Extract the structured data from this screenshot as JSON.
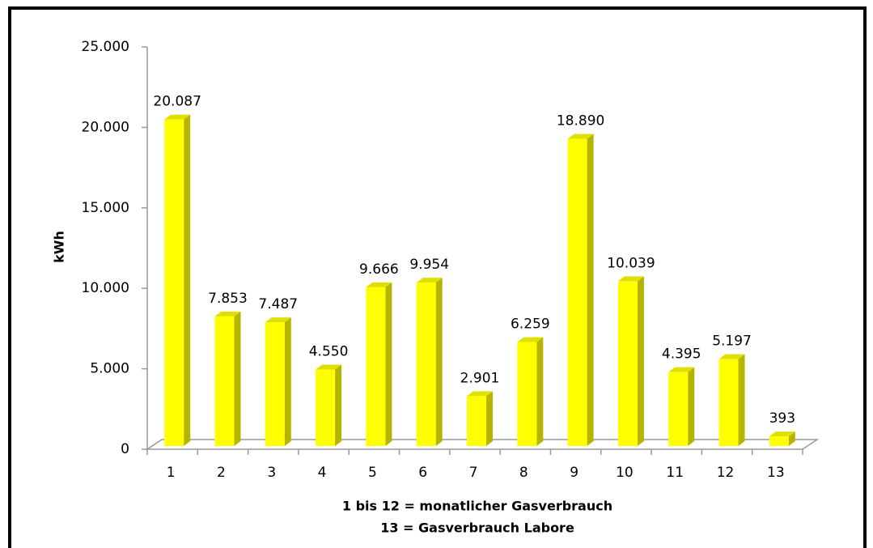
{
  "chart_data": {
    "type": "bar3d",
    "ylabel": "kWh",
    "xlabel": [
      "1 bis 12  = monatlicher Gasverbrauch",
      "13 = Gasverbrauch Labore"
    ],
    "categories": [
      "1",
      "2",
      "3",
      "4",
      "5",
      "6",
      "7",
      "8",
      "9",
      "10",
      "11",
      "12",
      "13"
    ],
    "values": [
      20087,
      7853,
      7487,
      4550,
      9666,
      9954,
      2901,
      6259,
      18890,
      10039,
      4395,
      5197,
      393
    ],
    "value_labels": [
      "20.087",
      "7.853",
      "7.487",
      "4.550",
      "9.666",
      "9.954",
      "2.901",
      "6.259",
      "18.890",
      "10.039",
      "4.395",
      "5.197",
      "393"
    ],
    "color": "#ffff00",
    "ylim": [
      0,
      25000
    ],
    "yticks": [
      0,
      {
        "value": 5000,
        "label": "5.000"
      },
      {
        "value": 10000,
        "label": "10.000"
      },
      {
        "value": 15000,
        "label": "15.000"
      },
      {
        "value": 20000,
        "label": "20.000"
      },
      {
        "value": 25000,
        "label": "25.000"
      }
    ]
  }
}
